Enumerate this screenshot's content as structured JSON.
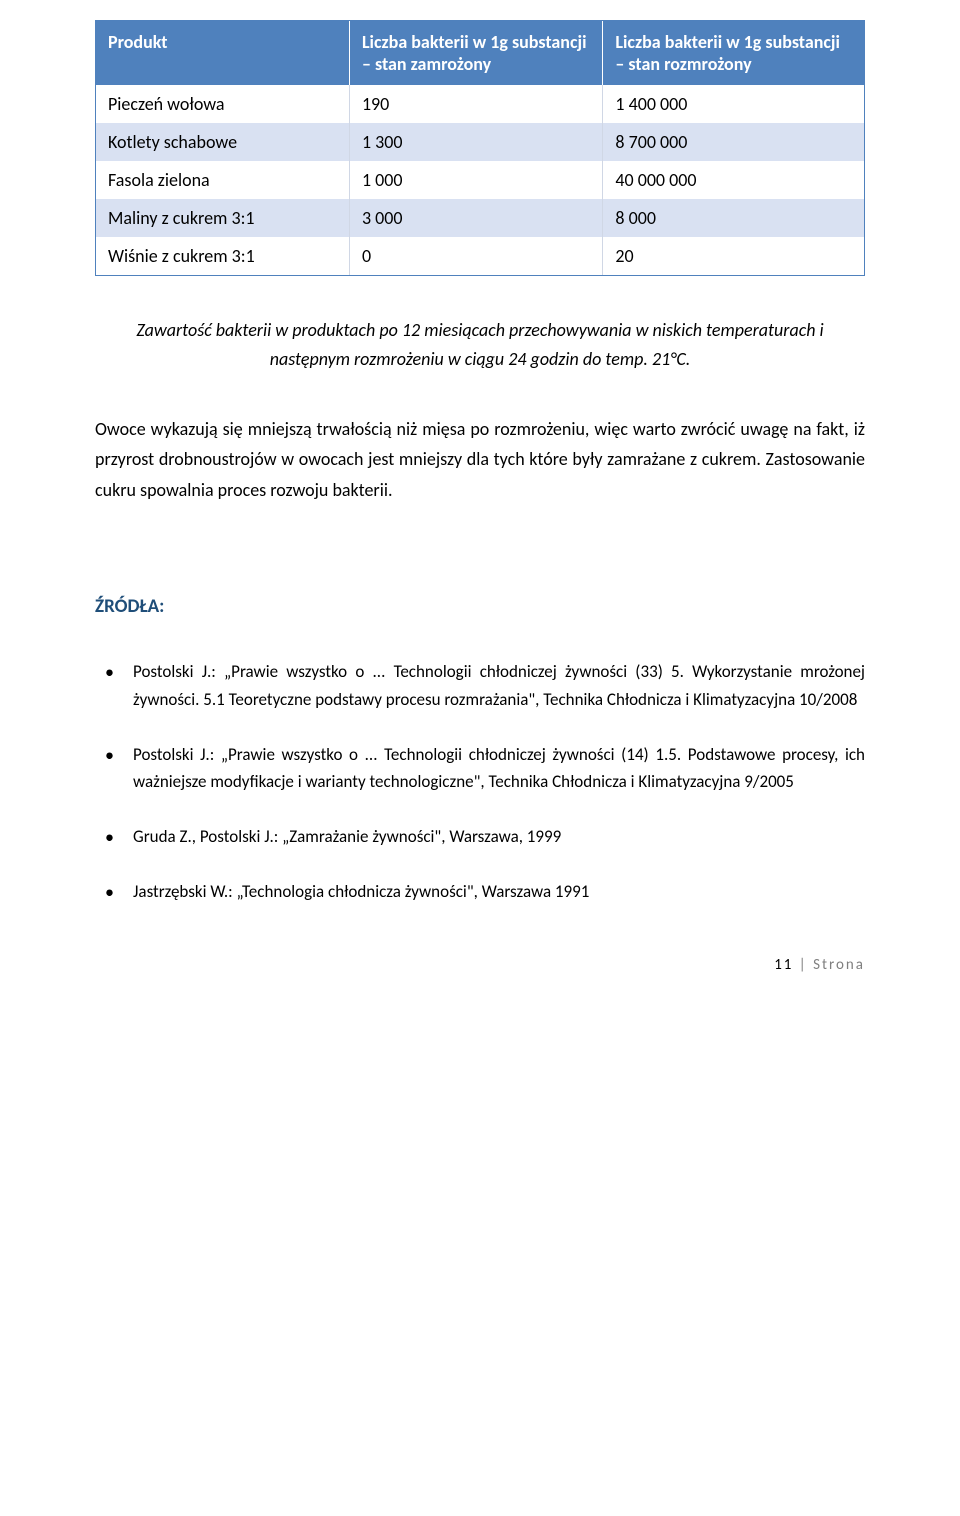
{
  "table": {
    "header_bg": "#4f81bd",
    "alt_row_bg": "#d9e1f2",
    "columns": [
      "Produkt",
      "Liczba bakterii w 1g substancji – stan zamrożony",
      "Liczba bakterii w 1g substancji – stan rozmrożony"
    ],
    "rows": [
      {
        "c0": "Pieczeń wołowa",
        "c1": "190",
        "c2": "1 400 000"
      },
      {
        "c0": "Kotlety schabowe",
        "c1": "1 300",
        "c2": "8 700 000"
      },
      {
        "c0": "Fasola zielona",
        "c1": "1 000",
        "c2": "40 000 000"
      },
      {
        "c0": "Maliny z cukrem 3:1",
        "c1": "3 000",
        "c2": "8 000"
      },
      {
        "c0": "Wiśnie z cukrem 3:1",
        "c1": "0",
        "c2": "20"
      }
    ]
  },
  "caption": "Zawartość bakterii w produktach po 12 miesiącach przechowywania w niskich temperaturach i następnym rozmrożeniu w ciągu 24 godzin do temp. 21°C.",
  "body": "Owoce wykazują się mniejszą trwałością niż mięsa po rozmrożeniu, więc warto zwrócić uwagę na fakt, iż przyrost drobnoustrojów w owocach jest mniejszy dla tych które były zamrażane z cukrem. Zastosowanie cukru spowalnia proces rozwoju bakterii.",
  "sources_label": "ŹRÓDŁA:",
  "sources": {
    "s0": "Postolski J.: „Prawie wszystko o ... Technologii chłodniczej żywności (33) 5. Wykorzystanie mrożonej żywności. 5.1 Teoretyczne podstawy procesu rozmrażania\", Technika Chłodnicza i Klimatyzacyjna 10/2008",
    "s1": "Postolski J.: „Prawie wszystko o ... Technologii chłodniczej żywności (14) 1.5. Podstawowe procesy, ich ważniejsze modyfikacje i warianty technologiczne\", Technika Chłodnicza i Klimatyzacyjna 9/2005",
    "s2": "Gruda Z., Postolski J.: „Zamrażanie żywności\",  Warszawa, 1999",
    "s3": "Jastrzębski W.: „Technologia chłodnicza żywności\", Warszawa 1991"
  },
  "footer": {
    "page": "11",
    "sep": " | ",
    "word": "Strona"
  }
}
